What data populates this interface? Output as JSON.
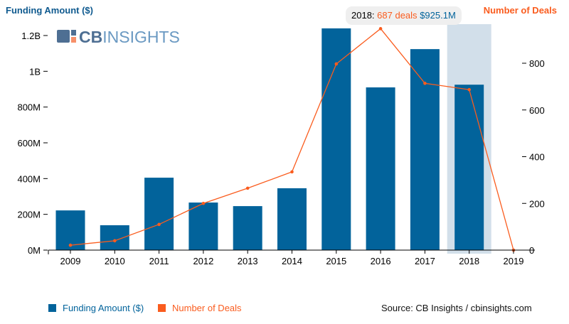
{
  "chart_data": {
    "type": "bar+line",
    "categories": [
      "2009",
      "2010",
      "2011",
      "2012",
      "2013",
      "2014",
      "2015",
      "2016",
      "2017",
      "2018",
      "2019"
    ],
    "series": [
      {
        "name": "Funding Amount ($)",
        "type": "bar",
        "axis": "left",
        "color": "#02639b",
        "values": [
          222000000,
          139000000,
          405000000,
          266000000,
          246000000,
          346000000,
          1240000000,
          910000000,
          1124000000,
          925100000,
          0
        ]
      },
      {
        "name": "Number of Deals",
        "type": "line",
        "axis": "right",
        "color": "#fa5c1e",
        "values": [
          21,
          40,
          110,
          200,
          265,
          335,
          797,
          948,
          714,
          687,
          0
        ]
      }
    ],
    "ylabel_left": "Funding Amount ($)",
    "ylabel_right": "Number of Deals",
    "ylim_left": [
      0,
      1200000000
    ],
    "ylim_right": [
      0,
      920
    ],
    "left_ticks": [
      {
        "v": 0,
        "label": "0M"
      },
      {
        "v": 200000000,
        "label": "200M"
      },
      {
        "v": 400000000,
        "label": "400M"
      },
      {
        "v": 600000000,
        "label": "600M"
      },
      {
        "v": 800000000,
        "label": "800M"
      },
      {
        "v": 1000000000,
        "label": "1B"
      },
      {
        "v": 1200000000,
        "label": "1.2B"
      }
    ],
    "right_ticks": [
      {
        "v": 0,
        "label": "0"
      },
      {
        "v": 200,
        "label": "200"
      },
      {
        "v": 400,
        "label": "400"
      },
      {
        "v": 600,
        "label": "600"
      },
      {
        "v": 800,
        "label": "800"
      }
    ],
    "highlighted_category": "2018",
    "legend": "bottom-left",
    "grid": false
  },
  "tooltip": {
    "year": "2018:",
    "deals": "687 deals",
    "amount": "$925.1M"
  },
  "logo": {
    "text_bold": "CB",
    "text_light": "INSIGHTS"
  },
  "legend": {
    "funding": "Funding Amount ($)",
    "deals": "Number of Deals"
  },
  "source": "Source: CB Insights / cbinsights.com",
  "colors": {
    "bar": "#02639b",
    "line": "#fa5c1e",
    "highlight": "#d2dfea",
    "title": "#0f5a8f"
  }
}
